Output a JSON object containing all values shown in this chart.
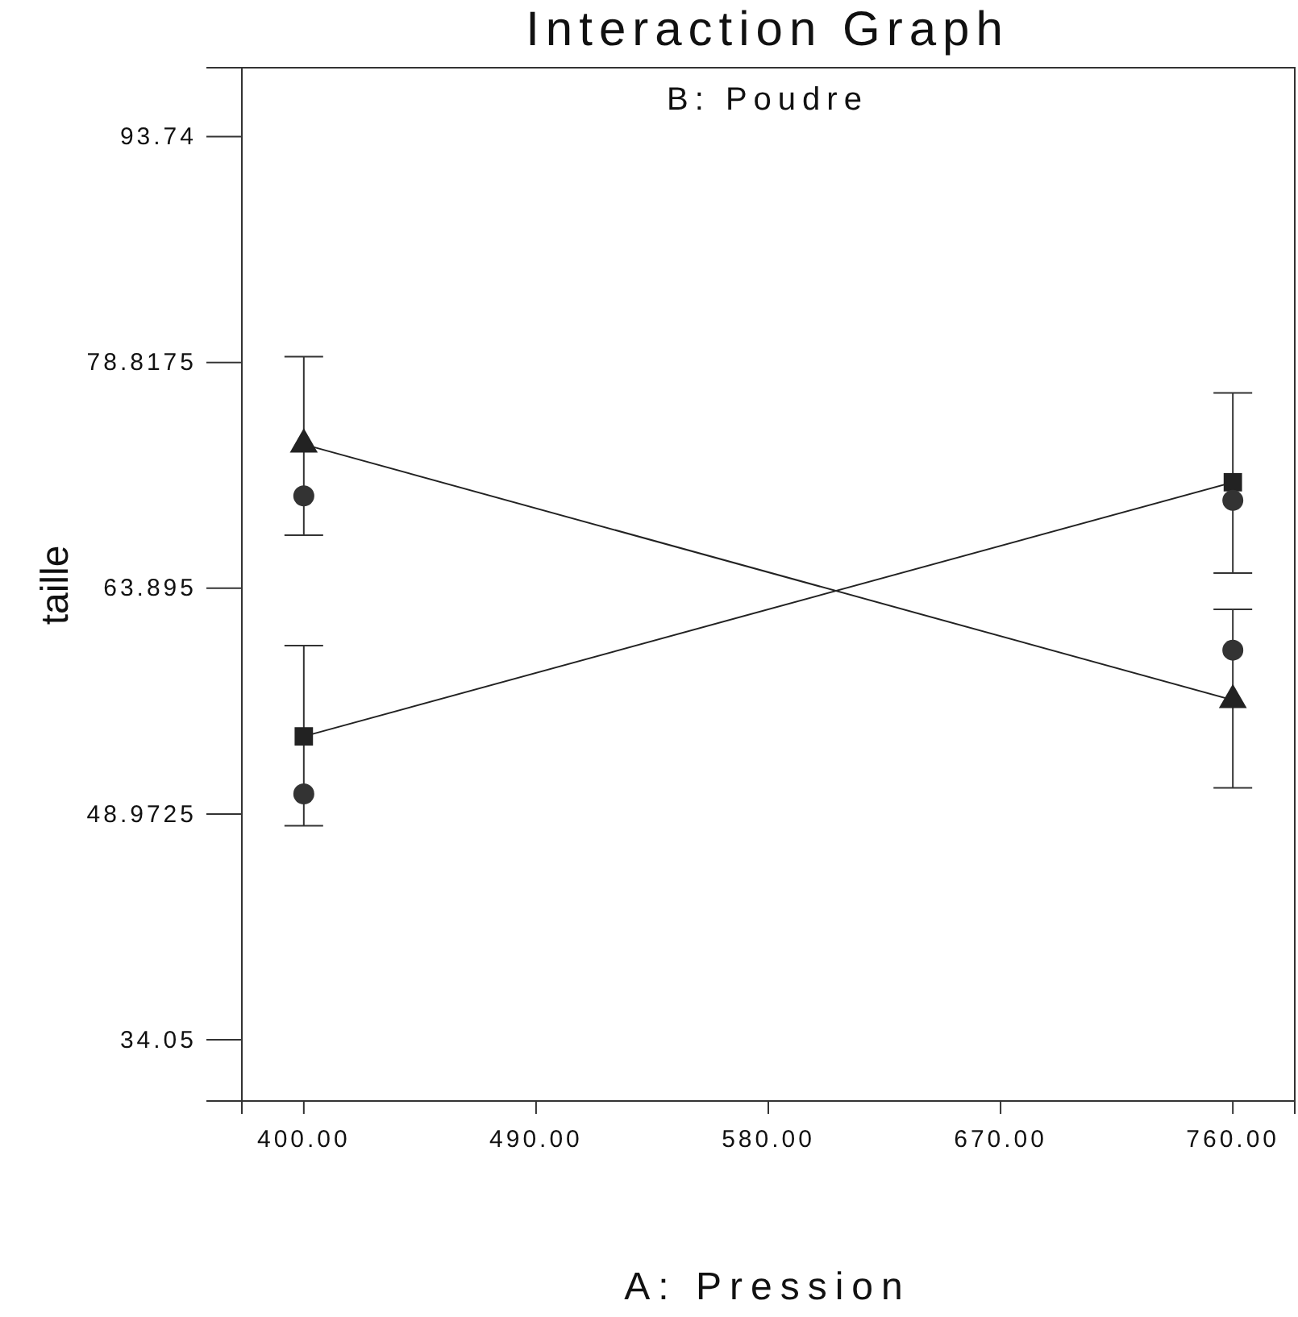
{
  "chart_data": {
    "type": "line",
    "title": "Interaction Graph",
    "subtitle": "B: Poudre",
    "xlabel": "A: Pression",
    "ylabel": "taille",
    "x": [
      400,
      760
    ],
    "series": [
      {
        "color": "#222222",
        "marker": "triangle",
        "values": [
          73.4,
          56.5
        ],
        "errors": [
          [
            67.4,
            79.2
          ],
          [
            50.7,
            62.5
          ]
        ]
      },
      {
        "color": "#222222",
        "marker": "square",
        "values": [
          54.1,
          70.9
        ],
        "errors": [
          [
            48.2,
            60.1
          ],
          [
            64.9,
            76.8
          ]
        ]
      },
      {
        "type": "scatter",
        "color": "#333333",
        "marker": "circle",
        "values": [
          70.0,
          69.7
        ]
      },
      {
        "type": "scatter",
        "color": "#333333",
        "marker": "circle",
        "values": [
          50.3,
          59.8
        ]
      }
    ],
    "xlim": [
      376,
      784
    ],
    "ylim": [
      30,
      98.3
    ],
    "xticks": [
      {
        "value": 400,
        "label": "400.00"
      },
      {
        "value": 490,
        "label": "490.00"
      },
      {
        "value": 580,
        "label": "580.00"
      },
      {
        "value": 670,
        "label": "670.00"
      },
      {
        "value": 760,
        "label": "760.00"
      }
    ],
    "yticks": [
      34.05,
      48.9725,
      63.895,
      78.8175,
      93.74
    ],
    "grid": false
  }
}
